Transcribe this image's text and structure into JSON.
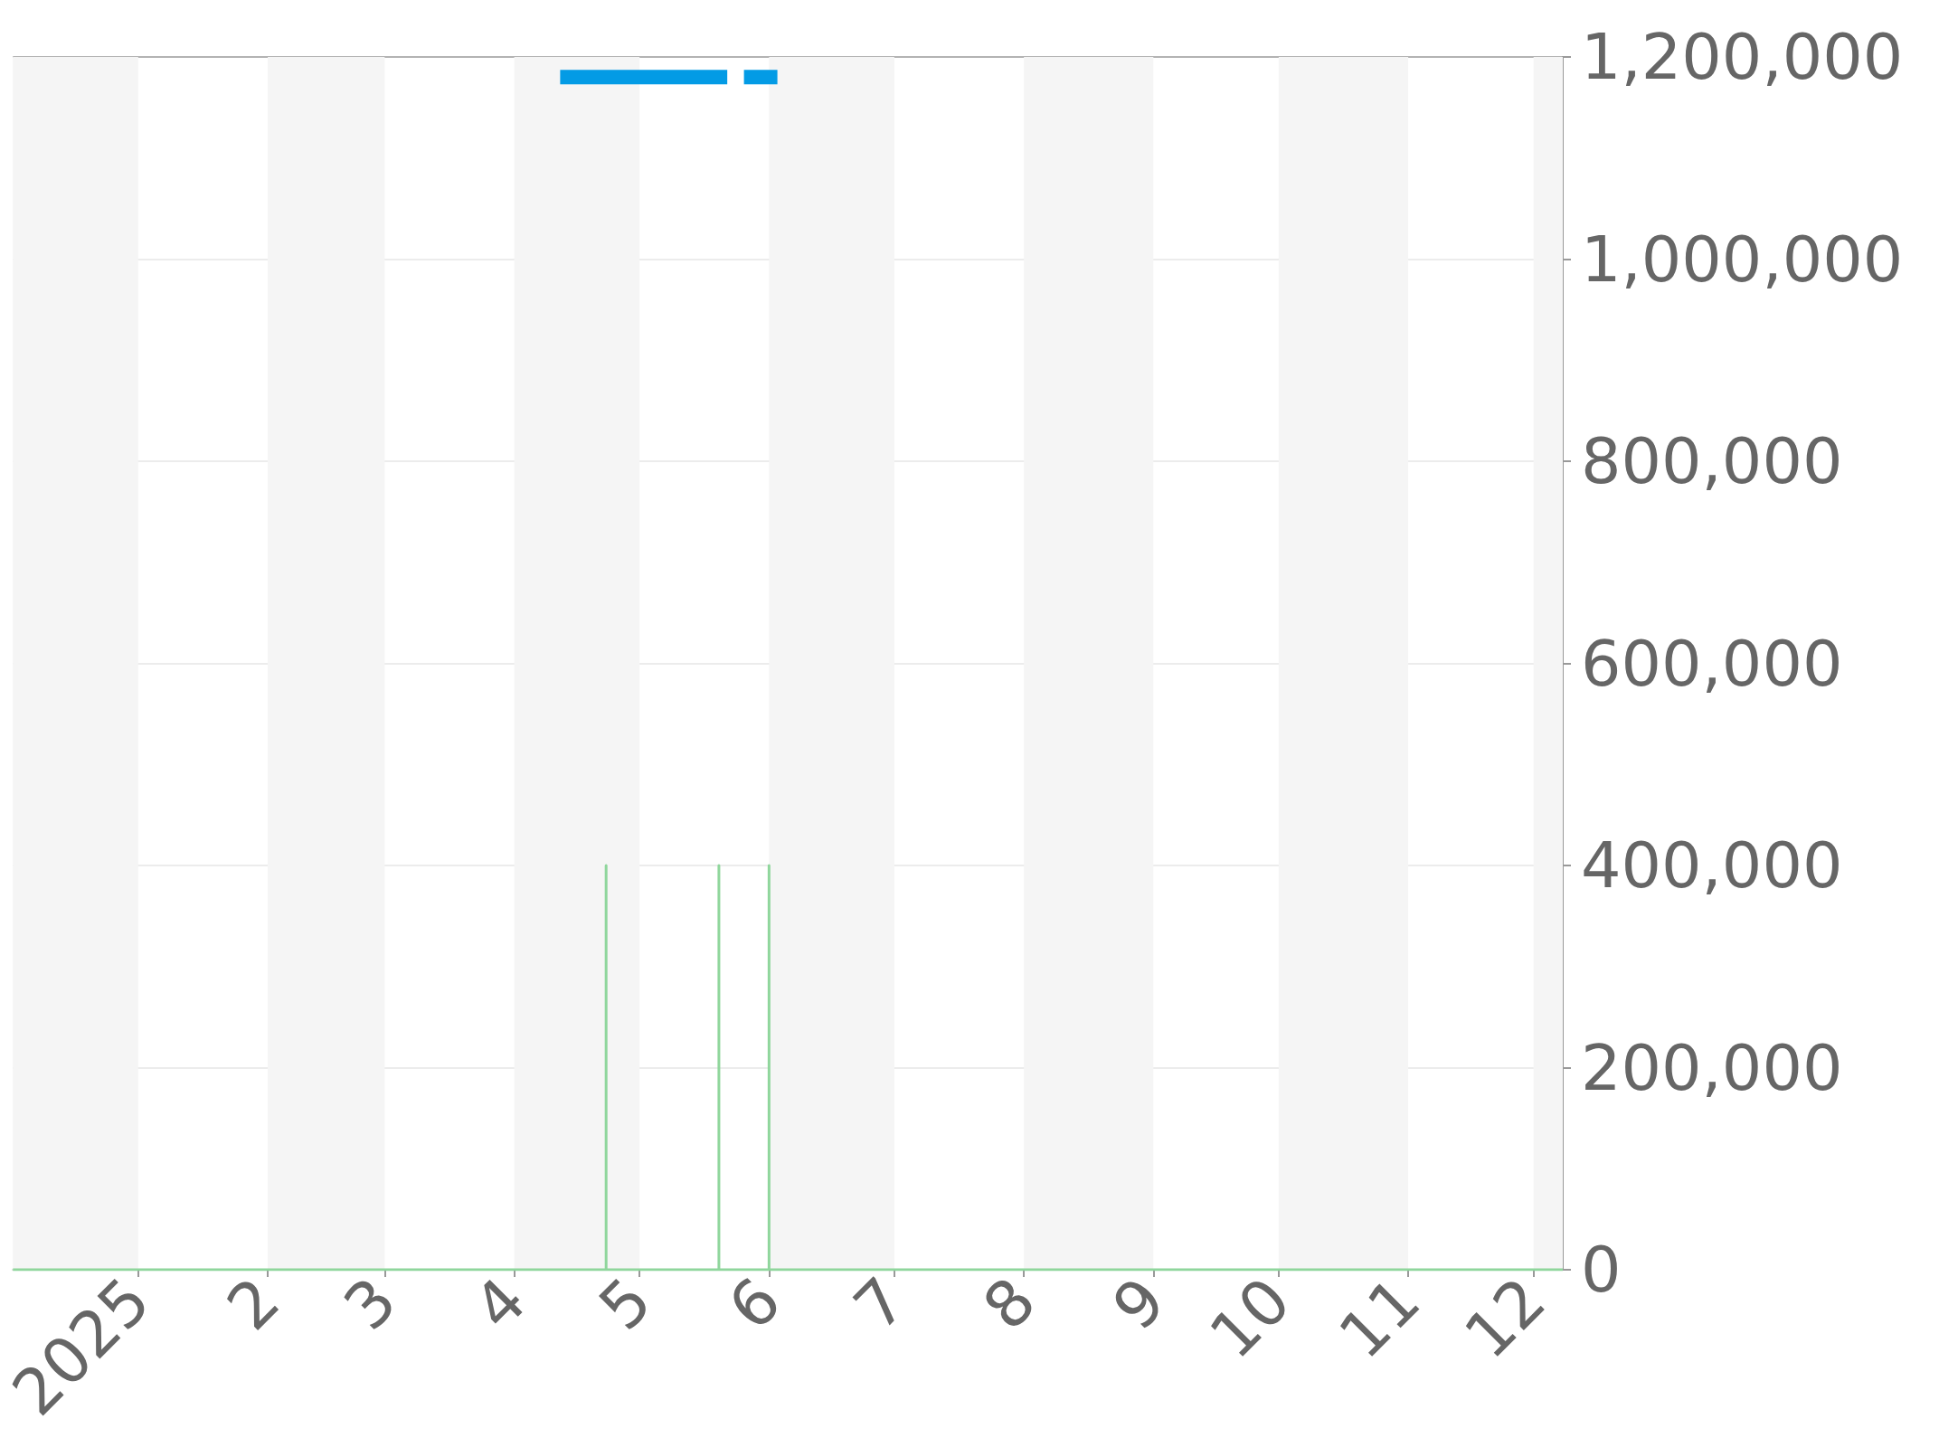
{
  "chart_data": {
    "type": "line",
    "series": [
      {
        "color": "#039be5",
        "x": [
          "2025-04-12",
          "2025-05-22",
          "2025-05-24",
          "2025-05-26",
          "2025-06-03"
        ],
        "values": [
          1180000,
          1180000,
          null,
          1180000,
          1180000
        ]
      },
      {
        "color": "#8fd69c",
        "x": [
          "2024-12-02",
          "2025-04-23",
          "2025-04-23",
          "2025-04-23",
          "2025-05-20",
          "2025-05-20",
          "2025-05-20",
          "2025-06-01",
          "2025-06-01",
          "2025-06-01",
          "2025-12-08"
        ],
        "values": [
          0,
          0,
          400000,
          0,
          0,
          400000,
          0,
          0,
          400000,
          0,
          0
        ]
      }
    ],
    "xlim": [
      "2024-12-02",
      "2025-12-08"
    ],
    "xticks": [
      {
        "value": "2025-01-01",
        "label": "2025"
      },
      {
        "value": "2025-02-01",
        "label": "2"
      },
      {
        "value": "2025-03-01",
        "label": "3"
      },
      {
        "value": "2025-04-01",
        "label": "4"
      },
      {
        "value": "2025-05-01",
        "label": "5"
      },
      {
        "value": "2025-06-01",
        "label": "6"
      },
      {
        "value": "2025-07-01",
        "label": "7"
      },
      {
        "value": "2025-08-01",
        "label": "8"
      },
      {
        "value": "2025-09-01",
        "label": "9"
      },
      {
        "value": "2025-10-01",
        "label": "10"
      },
      {
        "value": "2025-11-01",
        "label": "11"
      },
      {
        "value": "2025-12-01",
        "label": "12"
      }
    ],
    "ylim": [
      0,
      1200000
    ],
    "yticks": [
      0,
      {
        "value": 200000,
        "label": "200,000"
      },
      {
        "value": 400000,
        "label": "400,000"
      },
      {
        "value": 600000,
        "label": "600,000"
      },
      {
        "value": 800000,
        "label": "800,000"
      },
      {
        "value": 1000000,
        "label": "1,000,000"
      },
      {
        "value": 1200000,
        "label": "1,200,000"
      }
    ],
    "bands": [
      {
        "axis": "x",
        "from": "2024-12-02",
        "to": "2025-01-01",
        "color": "#f5f5f5"
      },
      {
        "axis": "x",
        "from": "2025-02-01",
        "to": "2025-03-01",
        "color": "#f5f5f5"
      },
      {
        "axis": "x",
        "from": "2025-04-01",
        "to": "2025-05-01",
        "color": "#f5f5f5"
      },
      {
        "axis": "x",
        "from": "2025-06-01",
        "to": "2025-07-01",
        "color": "#f5f5f5"
      },
      {
        "axis": "x",
        "from": "2025-08-01",
        "to": "2025-09-01",
        "color": "#f5f5f5"
      },
      {
        "axis": "x",
        "from": "2025-10-01",
        "to": "2025-11-01",
        "color": "#f5f5f5"
      },
      {
        "axis": "x",
        "from": "2025-12-01",
        "to": "2025-12-08",
        "color": "#f5f5f5"
      }
    ],
    "grid": "y",
    "marker": "none"
  }
}
